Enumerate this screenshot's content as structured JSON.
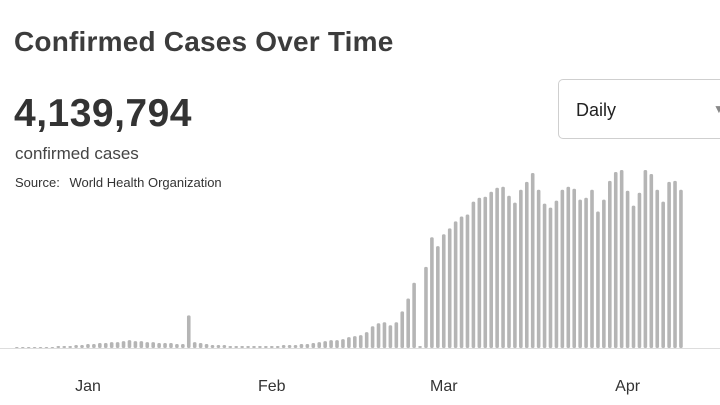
{
  "header": {
    "title": "Confirmed Cases Over Time",
    "total": "4,139,794",
    "total_label": "confirmed cases",
    "source_label": "Source:",
    "source_name": "World Health Organization"
  },
  "dropdown": {
    "selected": "Daily",
    "caret_icon": "chevron-down-icon"
  },
  "colors": {
    "bar": "#b5b5b5",
    "axis": "#dddddd"
  },
  "chart_data": {
    "type": "bar",
    "title": "Confirmed Cases Over Time",
    "xlabel": "",
    "ylabel": "",
    "grid": false,
    "x_ticks": [
      {
        "label": "Jan",
        "index": 12
      },
      {
        "label": "Feb",
        "index": 43
      },
      {
        "label": "Mar",
        "index": 72
      },
      {
        "label": "Apr",
        "index": 103
      }
    ],
    "values": [
      0,
      0,
      0,
      0,
      1,
      1,
      1,
      2,
      2,
      2,
      3,
      3,
      4,
      4,
      5,
      5,
      6,
      6,
      7,
      8,
      7,
      7,
      6,
      6,
      5,
      5,
      5,
      4,
      4,
      33,
      6,
      5,
      4,
      3,
      3,
      3,
      2,
      2,
      2,
      2,
      2,
      2,
      2,
      2,
      2,
      3,
      3,
      3,
      4,
      4,
      5,
      6,
      7,
      8,
      8,
      9,
      11,
      12,
      13,
      16,
      22,
      25,
      26,
      23,
      26,
      37,
      50,
      66,
      2,
      82,
      112,
      103,
      115,
      121,
      128,
      133,
      135,
      148,
      152,
      153,
      158,
      162,
      163,
      154,
      147,
      160,
      168,
      177,
      160,
      146,
      142,
      149,
      160,
      163,
      161,
      150,
      152,
      160,
      138,
      150,
      169,
      178,
      180,
      159,
      144,
      157,
      180,
      176,
      160,
      148,
      168,
      169,
      160
    ],
    "ylim": [
      0,
      180
    ]
  }
}
